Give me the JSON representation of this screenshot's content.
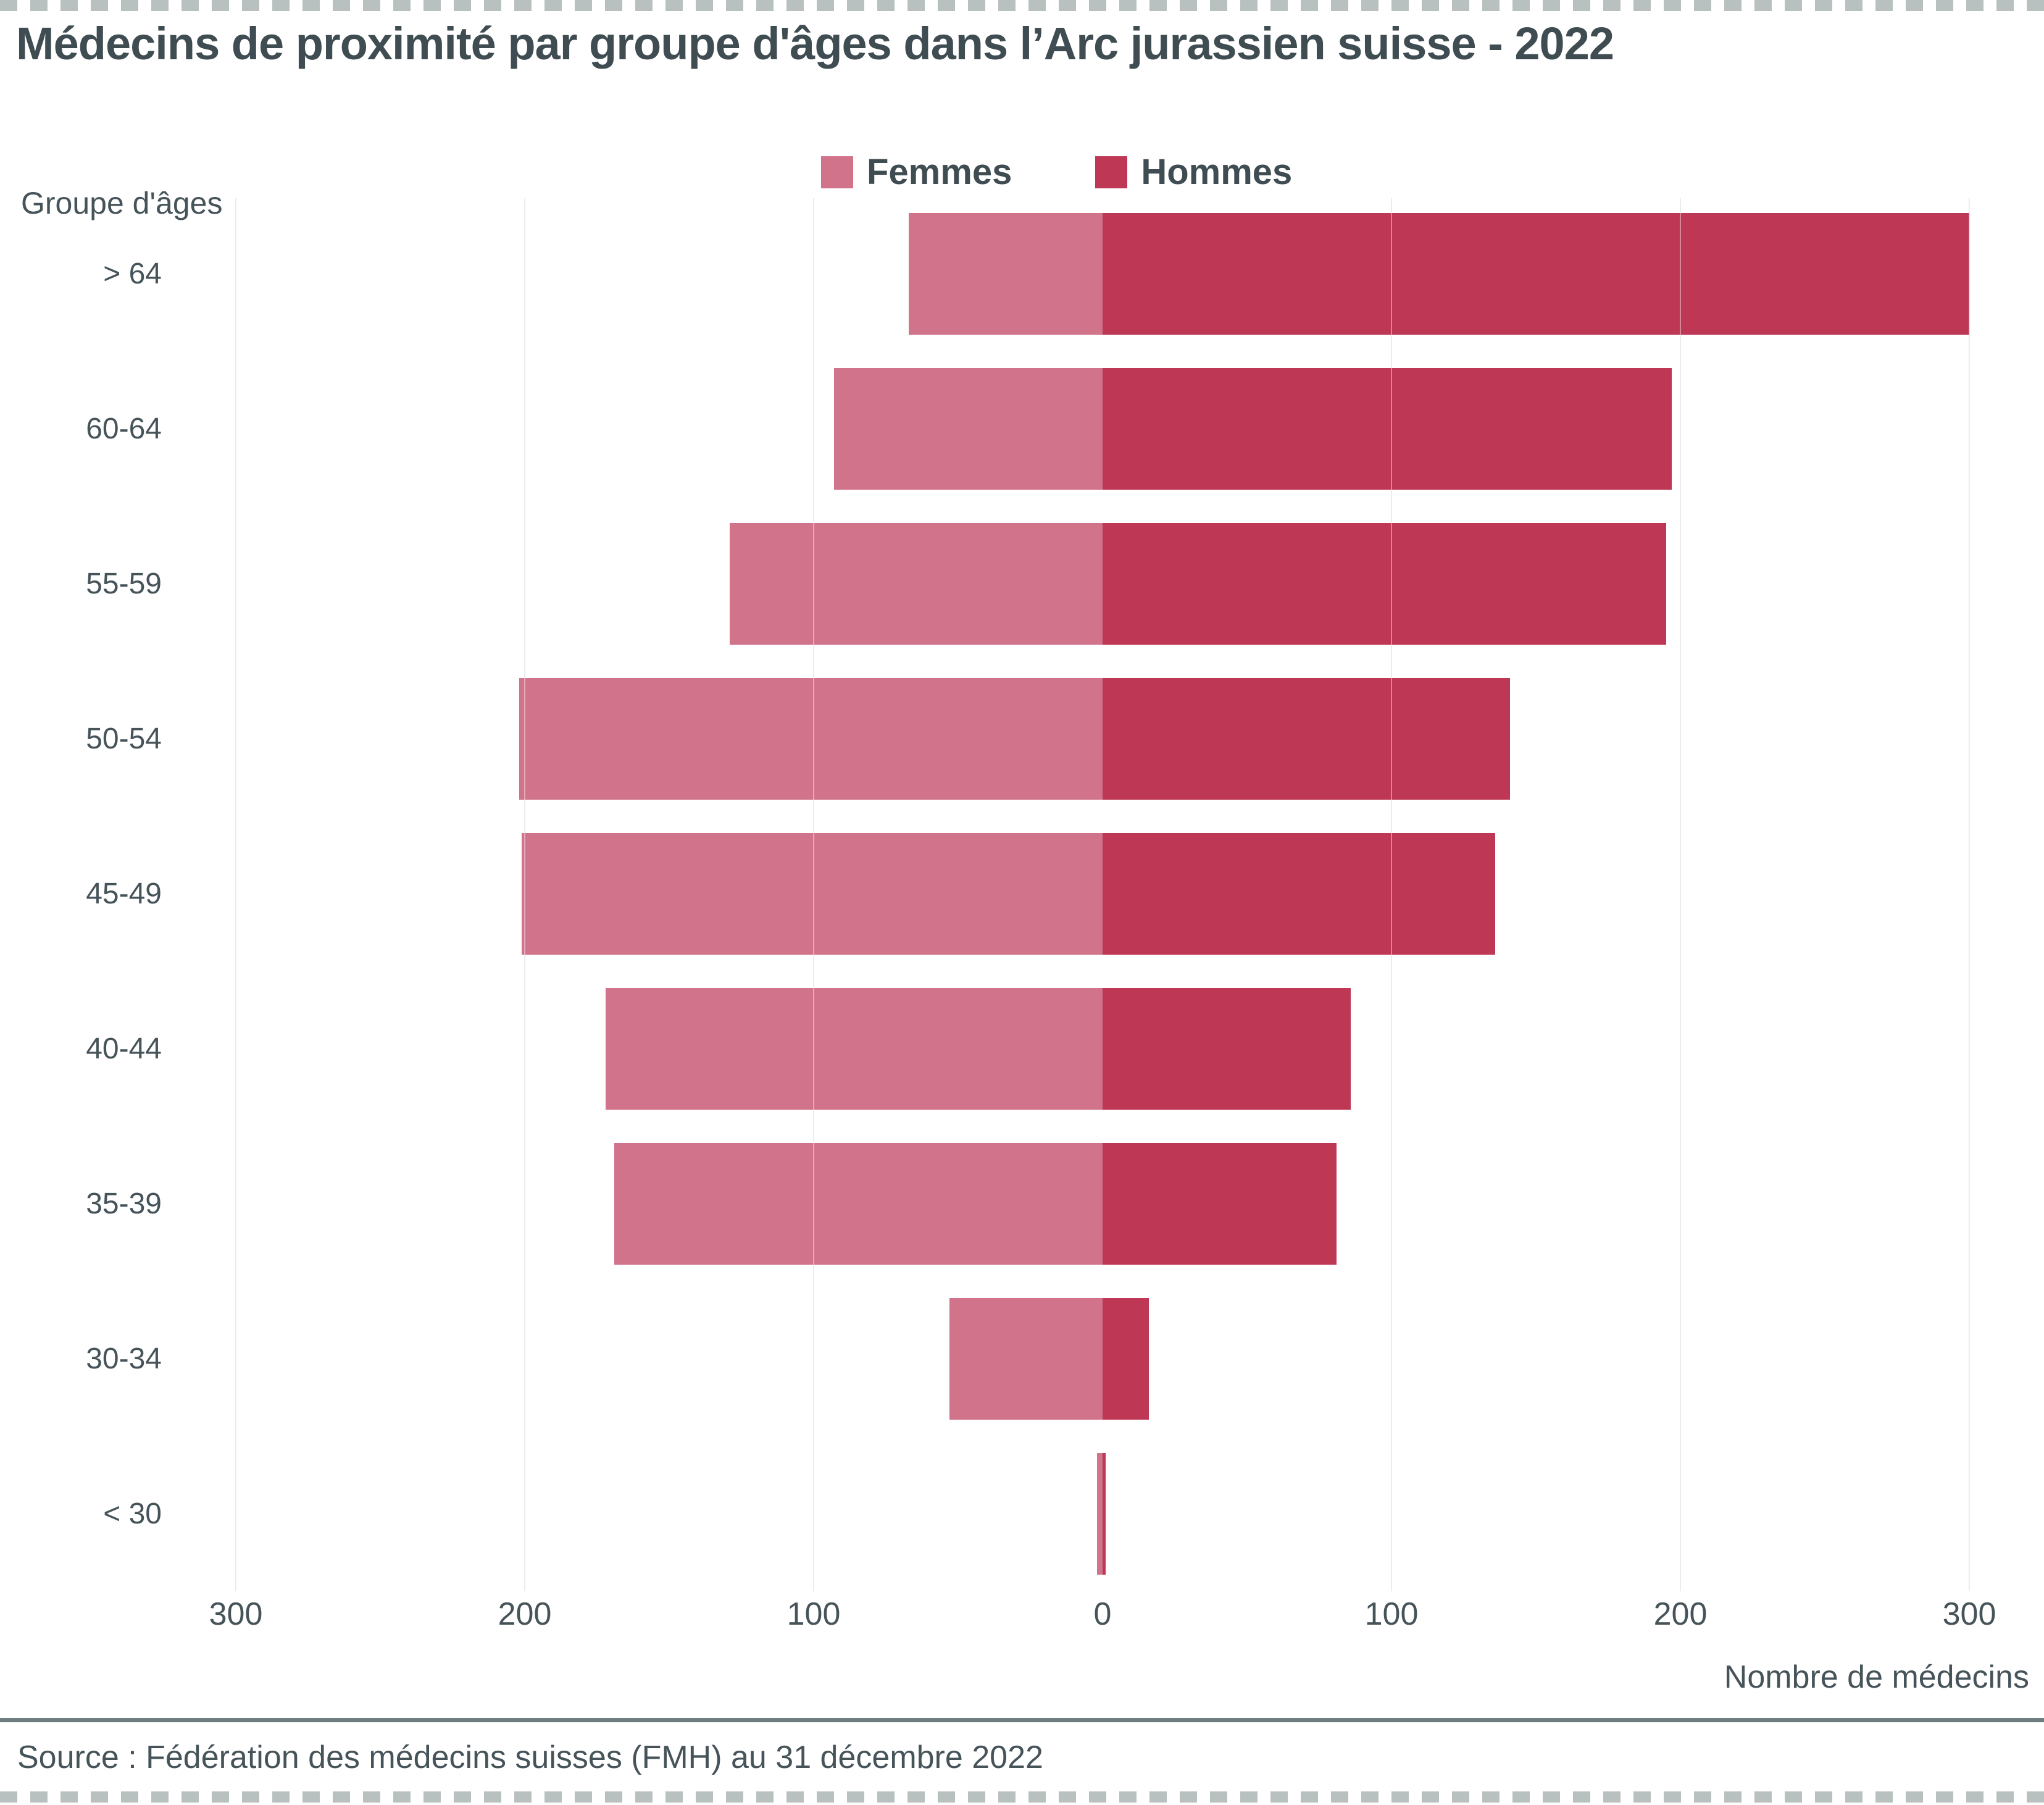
{
  "title": "Médecins de proximité par groupe d'âges dans l’Arc jurassien suisse - 2022",
  "y_axis_title": "Groupe d'âges",
  "x_axis_title": "Nombre de médecins",
  "source": "Source : Fédération des médecins suisses (FMH) au 31 décembre 2022",
  "legend": {
    "femmes": "Femmes",
    "hommes": "Hommes"
  },
  "colors": {
    "femmes": "#d2738c",
    "hommes": "#be3856",
    "gridline": "#dde2e2",
    "text": "#46545a",
    "title": "#3f4d52",
    "separator": "#6e7e80",
    "dashes": "#b9c0c0"
  },
  "chart_data": {
    "type": "bar",
    "orientation": "horizontal-diverging",
    "title": "Médecins de proximité par groupe d'âges dans l’Arc jurassien suisse - 2022",
    "xlabel": "Nombre de médecins",
    "ylabel": "Groupe d'âges",
    "categories": [
      "> 64",
      "60-64",
      "55-59",
      "50-54",
      "45-49",
      "40-44",
      "35-39",
      "30-34",
      "< 30"
    ],
    "series": [
      {
        "name": "Femmes",
        "direction": "left",
        "values": [
          67,
          93,
          129,
          202,
          201,
          172,
          169,
          53,
          2
        ]
      },
      {
        "name": "Hommes",
        "direction": "right",
        "values": [
          300,
          197,
          195,
          141,
          136,
          86,
          81,
          16,
          1
        ]
      }
    ],
    "x_tick_labels": [
      "300",
      "200",
      "100",
      "0",
      "100",
      "200",
      "300"
    ],
    "x_tick_values": [
      -300,
      -200,
      -100,
      0,
      100,
      200,
      300
    ],
    "xlim": [
      -343,
      326
    ],
    "grid": true,
    "legend_position": "top-center"
  }
}
